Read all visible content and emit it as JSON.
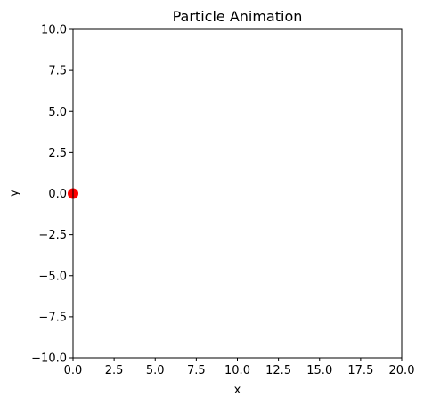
{
  "chart_data": {
    "type": "scatter",
    "title": "Particle Animation",
    "xlabel": "x",
    "ylabel": "y",
    "xlim": [
      0,
      20
    ],
    "ylim": [
      -10,
      10
    ],
    "xticks": [
      0,
      2.5,
      5,
      7.5,
      10,
      12.5,
      15,
      17.5,
      20
    ],
    "xtick_labels": [
      "0.0",
      "2.5",
      "5.0",
      "7.5",
      "10.0",
      "12.5",
      "15.0",
      "17.5",
      "20.0"
    ],
    "yticks": [
      -10,
      -7.5,
      -5,
      -2.5,
      0,
      2.5,
      5,
      7.5,
      10
    ],
    "ytick_labels": [
      "−10.0",
      "−7.5",
      "−5.0",
      "−2.5",
      "0.0",
      "2.5",
      "5.0",
      "7.5",
      "10.0"
    ],
    "grid": false,
    "series": [
      {
        "points": [
          {
            "x": 0,
            "y": 0
          }
        ],
        "color": "#ff0000"
      }
    ]
  }
}
